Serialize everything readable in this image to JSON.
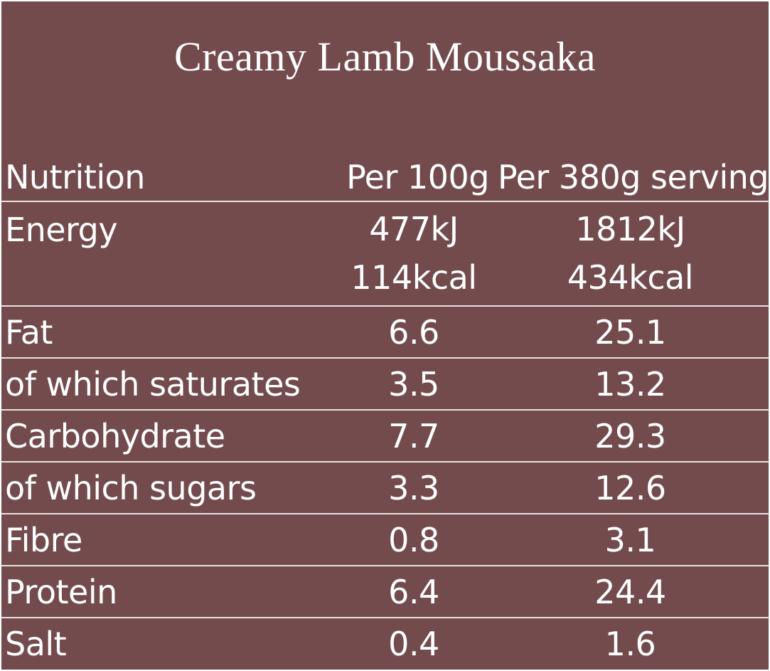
{
  "title": "Creamy Lamb Moussaka",
  "table": {
    "headers": [
      "Nutrition",
      "Per 100g",
      "Per 380g serving"
    ],
    "energy": {
      "label": "Energy",
      "per100": [
        "477kJ",
        "114kcal"
      ],
      "perServing": [
        "1812kJ",
        "434kcal"
      ]
    },
    "rows": [
      {
        "label": "Fat",
        "per100": "6.6",
        "perServing": "25.1"
      },
      {
        "label": "of which saturates",
        "per100": "3.5",
        "perServing": "13.2"
      },
      {
        "label": "Carbohydrate",
        "per100": "7.7",
        "perServing": "29.3"
      },
      {
        "label": "of which sugars",
        "per100": "3.3",
        "perServing": "12.6"
      },
      {
        "label": "Fibre",
        "per100": "0.8",
        "perServing": "3.1"
      },
      {
        "label": "Protein",
        "per100": "6.4",
        "perServing": "24.4"
      },
      {
        "label": "Salt",
        "per100": "0.4",
        "perServing": "1.6"
      }
    ]
  },
  "colors": {
    "background": "#734b4d",
    "text": "#ffffff",
    "rule": "#e9e2e2"
  }
}
